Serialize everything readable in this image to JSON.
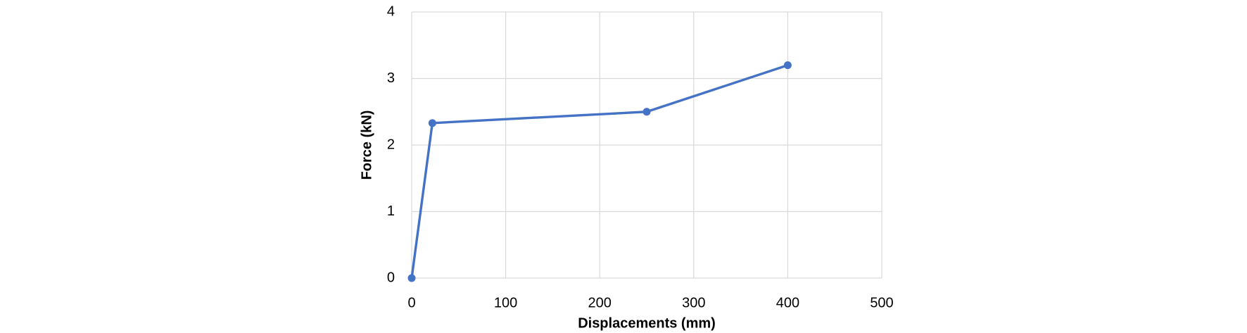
{
  "chart_data": {
    "type": "line",
    "x_label": "Displacements (mm)",
    "y_label": "Force (kN)",
    "series": [
      {
        "x": [
          0,
          22,
          250,
          400
        ],
        "values": [
          0,
          2.33,
          2.5,
          3.2
        ],
        "color": "#4472c4"
      }
    ],
    "xlim": [
      0,
      500
    ],
    "xticks": [
      0,
      100,
      200,
      300,
      400,
      500
    ],
    "ylim": [
      0,
      4
    ],
    "yticks": [
      0,
      1,
      2,
      3,
      4
    ],
    "grid": true
  }
}
